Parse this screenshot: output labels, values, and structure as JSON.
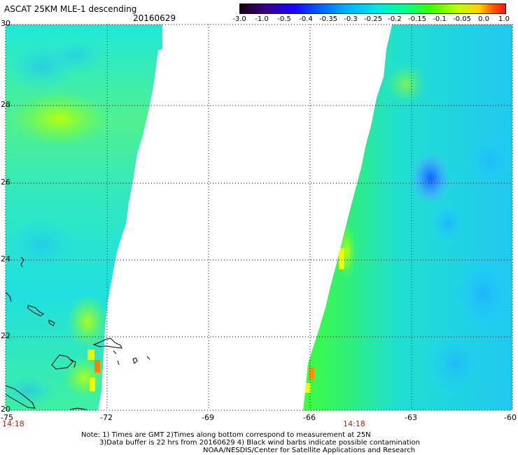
{
  "title": "ASCAT 25KM MLE-1 descending",
  "date": "20160629",
  "colorbar": {
    "ticks": [
      "-3.0",
      "-1.0",
      "-0.5",
      "-0.4",
      "-0.35",
      "-0.3",
      "-0.25",
      "-0.2",
      "-0.15",
      "-0.1",
      "-0.05",
      "0.0",
      "1.0"
    ]
  },
  "axes": {
    "lat_labels": [
      "30",
      "28",
      "26",
      "24",
      "22",
      "20"
    ],
    "lon_labels": [
      "-75",
      "-72",
      "-69",
      "-66",
      "-63",
      "-60"
    ]
  },
  "times": [
    "14:18",
    "14:18"
  ],
  "notes": [
    "Note: 1) Times are GMT 2)Times along bottom correspond to measurement at 25N",
    "3)Data buffer is 22 hrs from 20160629 4) Black wind barbs indicate possible contamination",
    "NOAA/NESDIS/Center for Satellite Applications and Research"
  ]
}
